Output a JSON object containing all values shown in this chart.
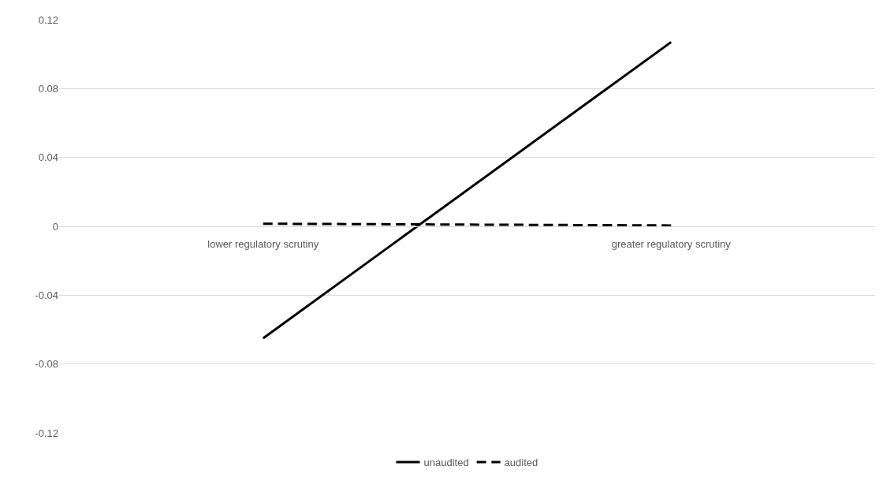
{
  "chart_data": {
    "type": "line",
    "categories": [
      "lower regulatory scrutiny",
      "greater regulatory scrutiny"
    ],
    "series": [
      {
        "name": "unaudited",
        "color": "#000000",
        "values": [
          -0.065,
          0.107
        ],
        "line_style": "solid"
      },
      {
        "name": "audited",
        "color": "#000000",
        "values": [
          0.0015,
          0.0005
        ],
        "line_style": "dashed"
      }
    ],
    "ylim": [
      -0.12,
      0.12
    ],
    "yticks": [
      -0.12,
      -0.08,
      -0.04,
      0,
      0.04,
      0.08,
      0.12
    ],
    "grid": "y",
    "legend": "bottom",
    "marker": "none"
  }
}
